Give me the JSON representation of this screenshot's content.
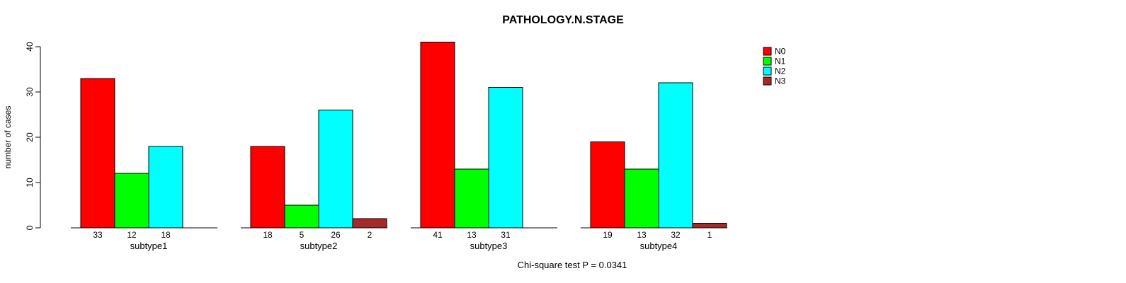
{
  "figure": {
    "background": "#FFFFFF",
    "text_color": "#000000"
  },
  "chart_data": {
    "type": "bar",
    "title": "PATHOLOGY.N.STAGE",
    "ylabel": "number of cases",
    "xlabel": "",
    "annotation": "Chi-square test P = 0.0341",
    "categories": [
      "subtype1",
      "subtype2",
      "subtype3",
      "subtype4"
    ],
    "series": [
      {
        "name": "N0",
        "color": "#FF0000",
        "values": [
          33,
          18,
          41,
          19
        ]
      },
      {
        "name": "N1",
        "color": "#00FF00",
        "values": [
          12,
          5,
          13,
          13
        ]
      },
      {
        "name": "N2",
        "color": "#00FFFF",
        "values": [
          18,
          26,
          31,
          32
        ]
      },
      {
        "name": "N3",
        "color": "#A52A2A",
        "values": [
          0,
          2,
          0,
          1
        ]
      }
    ],
    "yticks": [
      0,
      10,
      20,
      30,
      40
    ],
    "ylim": [
      0,
      40
    ],
    "grid": false,
    "legend_position": "right",
    "bar_value_labels": true
  }
}
